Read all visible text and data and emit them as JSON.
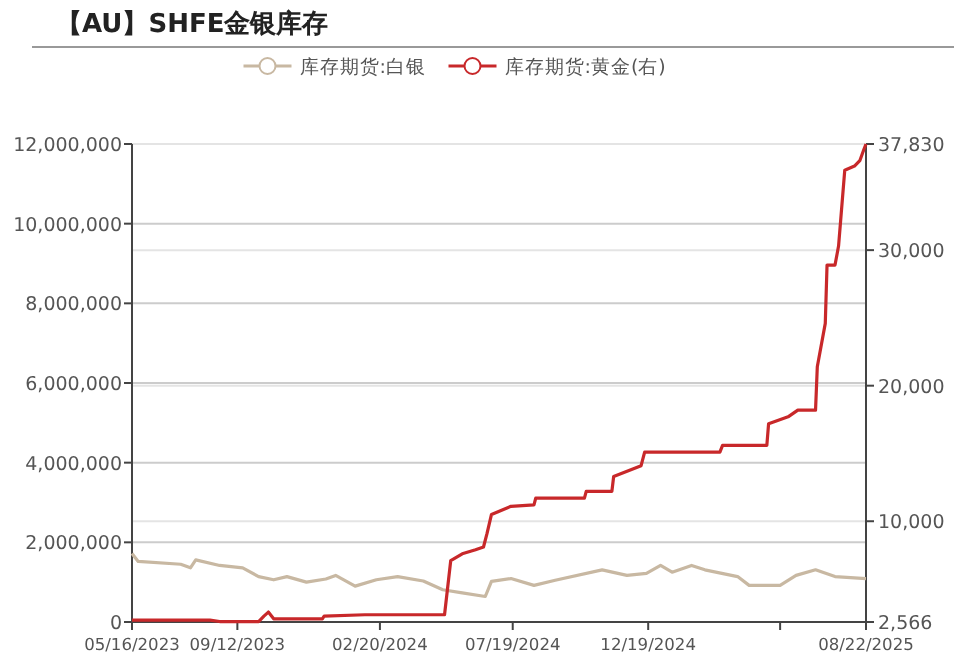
{
  "chart_data": {
    "type": "line",
    "title": "【AU】SHFE金银库存",
    "legend": "top",
    "grid": "y",
    "line_style": "solid",
    "xlim": [
      "2023-05-16",
      "2025-08-22"
    ],
    "xticks": [
      {
        "value": "2023-05-16",
        "label": "05/16/2023"
      },
      {
        "value": "2023-09-12",
        "label": "09/12/2023"
      },
      {
        "value": "2024-02-20",
        "label": "02/20/2024"
      },
      {
        "value": "2024-07-19",
        "label": "07/19/2024"
      },
      {
        "value": "2024-12-19",
        "label": "12/19/2024"
      },
      {
        "value": "2025-05-17",
        "label": null
      },
      {
        "value": "2025-08-22",
        "label": "08/22/2025"
      }
    ],
    "ylim": [
      0,
      12000000
    ],
    "yticks": [
      {
        "value": 0,
        "label": "0"
      },
      {
        "value": 2000000,
        "label": "2,000,000"
      },
      {
        "value": 4000000,
        "label": "4,000,000"
      },
      {
        "value": 6000000,
        "label": "6,000,000"
      },
      {
        "value": 8000000,
        "label": "8,000,000"
      },
      {
        "value": 10000000,
        "label": "10,000,000"
      },
      {
        "value": 12000000,
        "label": "12,000,000"
      }
    ],
    "y2lim": [
      2566,
      37830
    ],
    "y2ticks": [
      {
        "value": 2566,
        "label": "2,566"
      },
      {
        "value": 10000,
        "label": "10,000"
      },
      {
        "value": 20000,
        "label": "20,000"
      },
      {
        "value": 30000,
        "label": "30,000"
      },
      {
        "value": 37830,
        "label": "37,830"
      }
    ],
    "series": [
      {
        "name": "库存期货:白银",
        "color": "#c8b8a2",
        "x": [
          "2023-05-16",
          "2023-05-23",
          "2023-07-10",
          "2023-07-21",
          "2023-07-27",
          "2023-08-23",
          "2023-09-18",
          "2023-10-06",
          "2023-10-23",
          "2023-11-07",
          "2023-11-29",
          "2023-12-21",
          "2024-01-01",
          "2024-01-23",
          "2024-02-16",
          "2024-03-11",
          "2024-04-09",
          "2024-05-01",
          "2024-05-23",
          "2024-06-18",
          "2024-06-25",
          "2024-07-17",
          "2024-08-12",
          "2024-09-05",
          "2024-10-28",
          "2024-11-25",
          "2024-12-17",
          "2025-01-02",
          "2025-01-15",
          "2025-02-06",
          "2025-02-21",
          "2025-03-30",
          "2025-04-12",
          "2025-05-17",
          "2025-06-04",
          "2025-06-26",
          "2025-07-18",
          "2025-08-22"
        ],
        "values": [
          1720000,
          1520000,
          1450000,
          1360000,
          1560000,
          1420000,
          1360000,
          1140000,
          1060000,
          1140000,
          1000000,
          1080000,
          1170000,
          900000,
          1060000,
          1140000,
          1030000,
          810000,
          730000,
          640000,
          1020000,
          1090000,
          920000,
          1050000,
          1310000,
          1170000,
          1220000,
          1420000,
          1250000,
          1420000,
          1310000,
          1140000,
          920000,
          920000,
          1170000,
          1310000,
          1140000,
          1090000
        ]
      },
      {
        "name": "库存期货:黄金(右)",
        "color": "#c8282a",
        "axis": "y2",
        "x": [
          "2023-05-16",
          "2023-08-12",
          "2023-08-23",
          "2023-10-06",
          "2023-10-12",
          "2023-10-17",
          "2023-10-23",
          "2023-12-17",
          "2023-12-19",
          "2024-02-03",
          "2024-05-03",
          "2024-05-10",
          "2024-05-23",
          "2024-06-07",
          "2024-06-16",
          "2024-06-20",
          "2024-06-25",
          "2024-07-17",
          "2024-08-12",
          "2024-08-14",
          "2024-10-08",
          "2024-10-10",
          "2024-11-08",
          "2024-11-10",
          "2024-12-11",
          "2024-12-15",
          "2025-03-10",
          "2025-03-13",
          "2025-05-02",
          "2025-05-04",
          "2025-05-26",
          "2025-06-06",
          "2025-06-26",
          "2025-06-28",
          "2025-07-07",
          "2025-07-09",
          "2025-07-18",
          "2025-07-22",
          "2025-07-29",
          "2025-08-09",
          "2025-08-15",
          "2025-08-20",
          "2025-08-22"
        ],
        "values": [
          2700,
          2700,
          2600,
          2600,
          3000,
          3300,
          2800,
          2800,
          3000,
          3100,
          3100,
          7100,
          7600,
          7900,
          8100,
          9100,
          10500,
          11100,
          11200,
          11700,
          11700,
          12200,
          12200,
          13300,
          14100,
          15100,
          15100,
          15600,
          15600,
          17200,
          17700,
          18200,
          18200,
          21400,
          24600,
          28900,
          28900,
          30300,
          35900,
          36200,
          36600,
          37500,
          37830
        ]
      }
    ]
  }
}
